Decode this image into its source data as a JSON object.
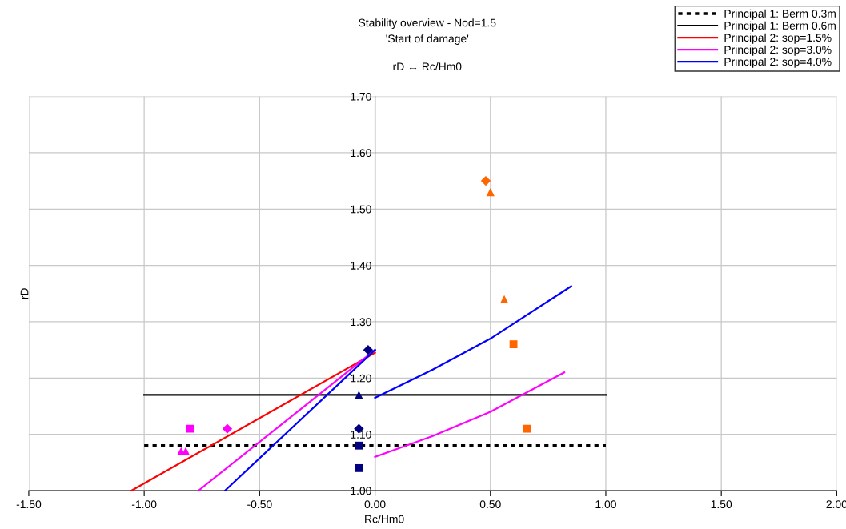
{
  "chart_data": {
    "type": "line",
    "title": "Stability overview - Nod=1.5",
    "subtitle": "'Start of damage'\n\nrD ↔ Rc/Hm0",
    "xlabel": "Rc/Hm0",
    "ylabel": "rD",
    "xlim": [
      -1.5,
      2.0
    ],
    "ylim": [
      1.0,
      1.7
    ],
    "xticks": [
      {
        "value": -1.5,
        "label": "-1.50"
      },
      {
        "value": -1.0,
        "label": "-1.00"
      },
      {
        "value": -0.5,
        "label": "-0.50"
      },
      {
        "value": 0,
        "label": "0.00"
      },
      {
        "value": 0.5,
        "label": "0.50"
      },
      {
        "value": 1.0,
        "label": "1.00"
      },
      {
        "value": 1.5,
        "label": "1.50"
      },
      {
        "value": 2.0,
        "label": "2.00"
      }
    ],
    "yticks": [
      {
        "value": 1.0,
        "label": "1.00"
      },
      {
        "value": 1.1,
        "label": "1.10"
      },
      {
        "value": 1.2,
        "label": "1.20"
      },
      {
        "value": 1.3,
        "label": "1.30"
      },
      {
        "value": 1.4,
        "label": "1.40"
      },
      {
        "value": 1.5,
        "label": "1.50"
      },
      {
        "value": 1.6,
        "label": "1.60"
      },
      {
        "value": 1.7,
        "label": "1.70"
      }
    ],
    "grid": true,
    "legend": "top right",
    "series": [
      {
        "name": "Principal 1: Berm 0.3m",
        "line_style": "dotted",
        "color": "#000000",
        "x": [
          -1.0,
          1.0
        ],
        "values": [
          1.08,
          1.08
        ]
      },
      {
        "name": "Principal 1: Berm 0.6m",
        "line_style": "solid",
        "color": "#000000",
        "x": [
          -1.0,
          1.0
        ],
        "values": [
          1.17,
          1.17
        ]
      },
      {
        "name": "Principal 2: sop=1.5%",
        "line_style": "solid",
        "color": "#ff0000",
        "x": [
          -1.055,
          0.0
        ],
        "values": [
          1.0,
          1.245
        ]
      },
      {
        "name": "Principal 2: sop=3.0%",
        "line_style": "solid",
        "color": "#ff00ff",
        "x": [
          -0.765,
          0.0
        ],
        "values": [
          1.0,
          1.25
        ]
      },
      {
        "line_style": "solid",
        "color": "#ff00ff",
        "x": [
          0.0,
          0.25,
          0.5,
          0.82
        ],
        "values": [
          1.06,
          1.097,
          1.14,
          1.21
        ]
      },
      {
        "name": "Principal 2: sop=4.0%",
        "line_style": "solid",
        "color": "#0000ff",
        "x": [
          -0.65,
          0.0
        ],
        "values": [
          1.0,
          1.25
        ]
      },
      {
        "line_style": "solid",
        "color": "#0000ff",
        "x": [
          0.0,
          0.25,
          0.5,
          0.85
        ],
        "values": [
          1.165,
          1.215,
          1.27,
          1.363
        ]
      },
      {
        "type": "scatter",
        "marker": "diamond",
        "color": "#ff6600",
        "x": [
          0.48
        ],
        "values": [
          1.55
        ]
      },
      {
        "type": "scatter",
        "marker": "triangle",
        "color": "#ff6600",
        "x": [
          0.5,
          0.56
        ],
        "values": [
          1.53,
          1.34
        ]
      },
      {
        "type": "scatter",
        "marker": "square",
        "color": "#ff6600",
        "x": [
          0.6,
          0.66
        ],
        "values": [
          1.26,
          1.11
        ]
      },
      {
        "type": "scatter",
        "marker": "square",
        "color": "#ff00ff",
        "x": [
          -0.8
        ],
        "values": [
          1.11
        ]
      },
      {
        "type": "scatter",
        "marker": "diamond",
        "color": "#ff00ff",
        "x": [
          -0.64
        ],
        "values": [
          1.11
        ]
      },
      {
        "type": "scatter",
        "marker": "triangle",
        "color": "#ff00ff",
        "x": [
          -0.84,
          -0.82
        ],
        "values": [
          1.07,
          1.07
        ]
      },
      {
        "type": "scatter",
        "marker": "diamond",
        "color": "#000080",
        "x": [
          -0.03,
          -0.07
        ],
        "values": [
          1.25,
          1.11
        ]
      },
      {
        "type": "scatter",
        "marker": "triangle",
        "color": "#000080",
        "x": [
          -0.07
        ],
        "values": [
          1.17
        ]
      },
      {
        "type": "scatter",
        "marker": "square",
        "color": "#000080",
        "x": [
          -0.07,
          -0.07
        ],
        "values": [
          1.08,
          1.04
        ]
      }
    ]
  }
}
